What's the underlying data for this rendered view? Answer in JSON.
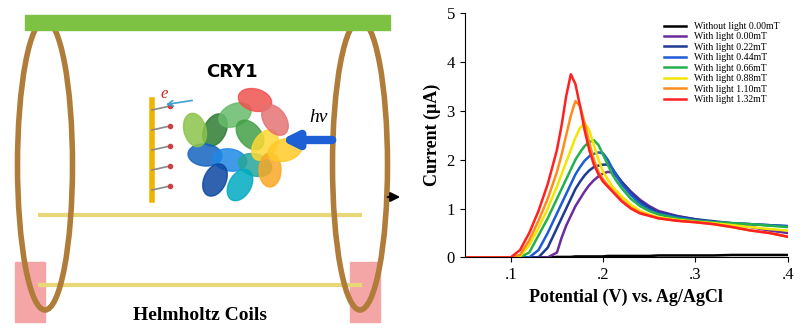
{
  "chart_data": {
    "type": "line",
    "x_label": "Potential (V) vs. Ag/AgCl",
    "y_label": "Current (μA)",
    "x": [
      0.05,
      0.07,
      0.09,
      0.1,
      0.11,
      0.12,
      0.13,
      0.14,
      0.15,
      0.155,
      0.16,
      0.165,
      0.17,
      0.175,
      0.18,
      0.185,
      0.19,
      0.195,
      0.2,
      0.205,
      0.21,
      0.215,
      0.22,
      0.23,
      0.24,
      0.25,
      0.26,
      0.28,
      0.3,
      0.32,
      0.34,
      0.36,
      0.38,
      0.4
    ],
    "series": [
      {
        "name": "Without light 0.00mT",
        "color": "#000000",
        "line_style": "solid",
        "values": [
          0,
          0,
          0,
          0,
          0,
          0,
          0,
          0,
          0.01,
          0.01,
          0.01,
          0.01,
          0.02,
          0.02,
          0.02,
          0.02,
          0.02,
          0.02,
          0.02,
          0.03,
          0.03,
          0.03,
          0.03,
          0.03,
          0.03,
          0.03,
          0.04,
          0.04,
          0.04,
          0.04,
          0.05,
          0.05,
          0.05,
          0.05
        ]
      },
      {
        "name": "With light 0.00mT",
        "color": "#6a2c9e",
        "line_style": "solid",
        "values": [
          0,
          0,
          0,
          0,
          0,
          0,
          0,
          0,
          0.1,
          0.4,
          0.65,
          0.85,
          1.05,
          1.2,
          1.35,
          1.48,
          1.58,
          1.66,
          1.72,
          1.75,
          1.74,
          1.65,
          1.55,
          1.35,
          1.18,
          1.05,
          0.95,
          0.85,
          0.78,
          0.72,
          0.68,
          0.62,
          0.55,
          0.5
        ]
      },
      {
        "name": "With light 0.22mT",
        "color": "#1f3a93",
        "line_style": "solid",
        "values": [
          0,
          0,
          0,
          0,
          0,
          0,
          0,
          0.2,
          0.6,
          0.8,
          1.0,
          1.2,
          1.4,
          1.55,
          1.68,
          1.78,
          1.85,
          1.88,
          1.9,
          1.9,
          1.82,
          1.68,
          1.55,
          1.32,
          1.15,
          1.02,
          0.92,
          0.84,
          0.78,
          0.74,
          0.7,
          0.68,
          0.66,
          0.64
        ]
      },
      {
        "name": "With light 0.44mT",
        "color": "#1e5bd6",
        "line_style": "solid",
        "values": [
          0,
          0,
          0,
          0,
          0,
          0,
          0.15,
          0.5,
          0.9,
          1.1,
          1.3,
          1.5,
          1.7,
          1.85,
          1.98,
          2.07,
          2.12,
          2.15,
          2.13,
          2.0,
          1.82,
          1.65,
          1.5,
          1.28,
          1.1,
          0.98,
          0.9,
          0.82,
          0.76,
          0.72,
          0.7,
          0.68,
          0.66,
          0.64
        ]
      },
      {
        "name": "With light 0.66mT",
        "color": "#22b14c",
        "line_style": "solid",
        "values": [
          0,
          0,
          0,
          0,
          0,
          0.1,
          0.45,
          0.8,
          1.2,
          1.4,
          1.6,
          1.8,
          2.0,
          2.15,
          2.28,
          2.36,
          2.4,
          2.3,
          2.1,
          1.9,
          1.7,
          1.55,
          1.42,
          1.2,
          1.05,
          0.95,
          0.88,
          0.8,
          0.75,
          0.72,
          0.7,
          0.68,
          0.65,
          0.62
        ]
      },
      {
        "name": "With light 0.88mT",
        "color": "#f2e600",
        "line_style": "solid",
        "values": [
          0,
          0,
          0,
          0,
          0.02,
          0.25,
          0.6,
          1.0,
          1.45,
          1.7,
          1.95,
          2.2,
          2.45,
          2.65,
          2.75,
          2.6,
          2.3,
          2.0,
          1.75,
          1.6,
          1.45,
          1.35,
          1.25,
          1.08,
          0.95,
          0.88,
          0.82,
          0.77,
          0.73,
          0.7,
          0.66,
          0.62,
          0.58,
          0.55
        ]
      },
      {
        "name": "With light 1.10mT",
        "color": "#ff8c1a",
        "line_style": "solid",
        "values": [
          0,
          0,
          0,
          0,
          0.05,
          0.35,
          0.75,
          1.2,
          1.75,
          2.1,
          2.5,
          2.9,
          3.2,
          3.1,
          2.75,
          2.35,
          2.0,
          1.75,
          1.6,
          1.48,
          1.38,
          1.28,
          1.18,
          1.02,
          0.92,
          0.86,
          0.8,
          0.75,
          0.72,
          0.68,
          0.62,
          0.55,
          0.5,
          0.43
        ]
      },
      {
        "name": "With light 1.32mT",
        "color": "#ff2020",
        "line_style": "solid",
        "values": [
          0,
          0,
          0,
          0,
          0.15,
          0.5,
          0.95,
          1.5,
          2.2,
          2.7,
          3.3,
          3.75,
          3.55,
          3.1,
          2.6,
          2.2,
          1.9,
          1.7,
          1.55,
          1.45,
          1.35,
          1.25,
          1.15,
          1.0,
          0.9,
          0.85,
          0.8,
          0.75,
          0.72,
          0.68,
          0.62,
          0.55,
          0.5,
          0.42
        ]
      }
    ],
    "xlim": [
      0.05,
      0.4
    ],
    "xticks": [
      {
        "value": 0.1,
        "label": ".1"
      },
      {
        "value": 0.2,
        "label": ".2"
      },
      {
        "value": 0.3,
        "label": ".3"
      },
      {
        "value": 0.4,
        "label": ".4"
      }
    ],
    "ylim": [
      0,
      5
    ],
    "yticks": [
      0,
      1,
      2,
      3,
      4,
      5
    ],
    "grid": false,
    "legend": "upper right"
  },
  "diagram": {
    "protein": {
      "label": "CRY1"
    },
    "electron": {
      "label": "e"
    },
    "light": {
      "label": "hν"
    },
    "apparatus": {
      "label": "Helmholtz Coils"
    }
  }
}
